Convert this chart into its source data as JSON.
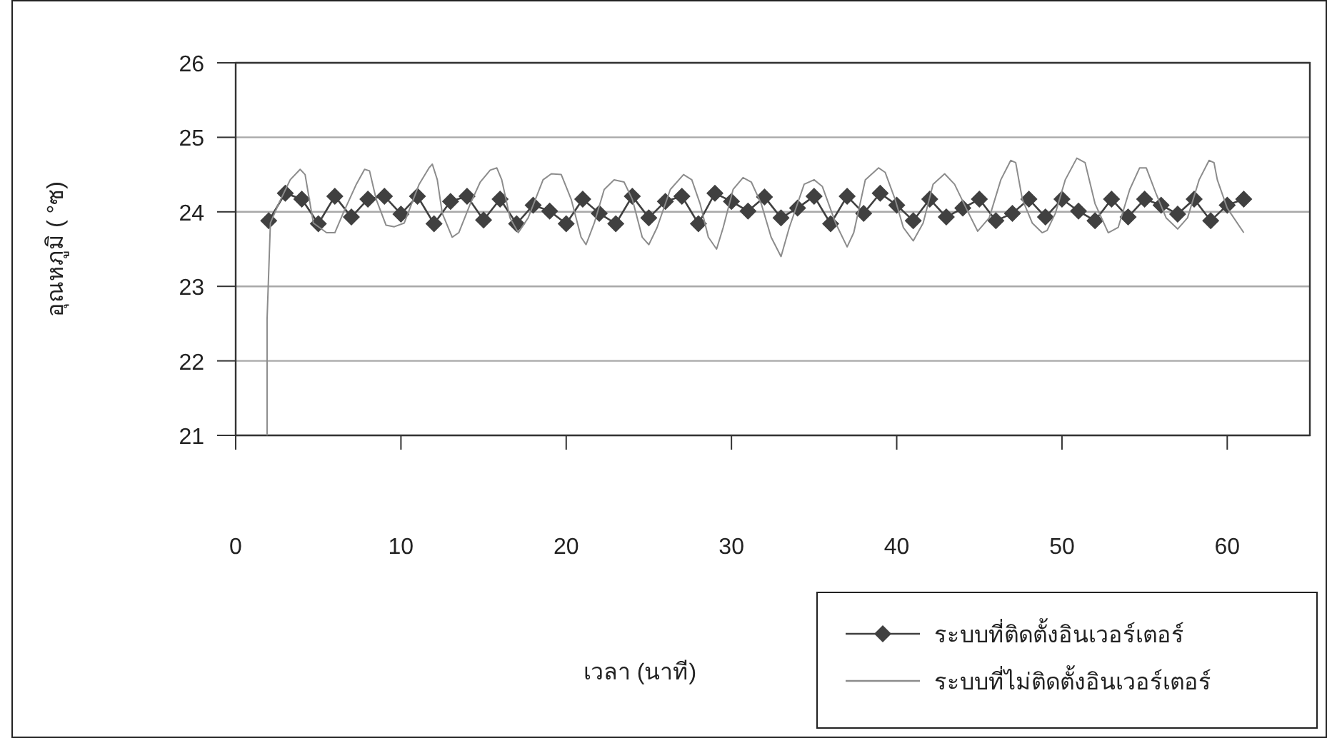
{
  "chart_data": {
    "type": "line",
    "xlabel": "เวลา (นาที)",
    "ylabel": "อุณหภูมิ ( °ซ)",
    "xlim": [
      0,
      65
    ],
    "ylim": [
      21,
      26
    ],
    "xticks": [
      0,
      10,
      20,
      30,
      40,
      50,
      60
    ],
    "yticks": [
      21,
      22,
      23,
      24,
      25,
      26
    ],
    "grid": "y",
    "legend": "bottom right",
    "series": [
      {
        "name": "ระบบที่ติดตั้งอินเวอร์เตอร์",
        "color": "#404040",
        "marker": "diamond",
        "x": [
          2,
          3,
          4,
          5,
          6,
          7,
          8,
          9,
          10,
          11,
          12,
          13,
          14,
          15,
          16,
          17,
          18,
          19,
          20,
          21,
          22,
          23,
          24,
          25,
          26,
          27,
          28,
          29,
          30,
          31,
          32,
          33,
          34,
          35,
          36,
          37,
          38,
          39,
          40,
          41,
          42,
          43,
          44,
          45,
          46,
          47,
          48,
          49,
          50,
          51,
          52,
          53,
          54,
          55,
          56,
          57,
          58,
          59,
          60,
          61
        ],
        "values": [
          23.88,
          24.25,
          24.17,
          23.84,
          24.21,
          23.93,
          24.17,
          24.21,
          23.97,
          24.21,
          23.84,
          24.14,
          24.21,
          23.89,
          24.17,
          23.84,
          24.09,
          24.01,
          23.84,
          24.17,
          23.98,
          23.84,
          24.21,
          23.92,
          24.14,
          24.21,
          23.84,
          24.25,
          24.14,
          24.01,
          24.2,
          23.92,
          24.05,
          24.21,
          23.84,
          24.21,
          23.98,
          24.25,
          24.09,
          23.88,
          24.17,
          23.93,
          24.05,
          24.17,
          23.88,
          23.98,
          24.17,
          23.93,
          24.17,
          24.01,
          23.88,
          24.17,
          23.93,
          24.17,
          24.09,
          23.97,
          24.17,
          23.88,
          24.09,
          24.17
        ]
      },
      {
        "name": "ระบบที่ไม่ติดตั้งอินเวอร์เตอร์",
        "color": "#8c8c8c",
        "marker": "none",
        "x": [
          1.9,
          1.9,
          2.1,
          2.6,
          3.3,
          3.9,
          4.2,
          4.7,
          5.5,
          6.0,
          6.5,
          7.3,
          7.8,
          8.1,
          8.5,
          9.1,
          9.6,
          10.2,
          11.1,
          11.7,
          11.9,
          12.2,
          12.5,
          13.1,
          13.5,
          14.2,
          14.8,
          15.4,
          15.8,
          16.1,
          16.6,
          17.1,
          17.7,
          18.6,
          19.1,
          19.7,
          20.3,
          20.9,
          21.2,
          21.7,
          22.3,
          22.9,
          23.5,
          24.0,
          24.6,
          25.0,
          25.5,
          26.3,
          27.1,
          27.6,
          28.1,
          28.6,
          29.1,
          29.5,
          30.1,
          30.7,
          31.2,
          31.8,
          32.4,
          33.0,
          33.5,
          34.4,
          35.0,
          35.5,
          36.3,
          37.0,
          37.4,
          38.1,
          38.9,
          39.3,
          39.9,
          40.4,
          41.0,
          41.6,
          42.2,
          42.9,
          43.5,
          44.2,
          44.9,
          45.6,
          46.3,
          46.9,
          47.2,
          47.6,
          48.2,
          48.8,
          49.1,
          49.6,
          50.2,
          50.9,
          51.4,
          52.0,
          52.8,
          53.4,
          54.1,
          54.7,
          55.1,
          55.7,
          56.3,
          57.0,
          57.6,
          58.3,
          58.9,
          59.2,
          59.4,
          60.0,
          61.0
        ],
        "values": [
          21.0,
          22.56,
          23.85,
          24.11,
          24.43,
          24.57,
          24.5,
          23.85,
          23.72,
          23.72,
          23.98,
          24.37,
          24.57,
          24.55,
          24.17,
          23.82,
          23.8,
          23.85,
          24.37,
          24.59,
          24.64,
          24.43,
          23.98,
          23.66,
          23.72,
          24.11,
          24.4,
          24.56,
          24.59,
          24.43,
          23.92,
          23.72,
          23.92,
          24.43,
          24.51,
          24.5,
          24.17,
          23.66,
          23.56,
          23.85,
          24.3,
          24.43,
          24.4,
          24.17,
          23.66,
          23.56,
          23.79,
          24.3,
          24.5,
          24.43,
          24.11,
          23.66,
          23.5,
          23.79,
          24.3,
          24.46,
          24.4,
          24.11,
          23.66,
          23.4,
          23.79,
          24.37,
          24.43,
          24.34,
          23.85,
          23.53,
          23.72,
          24.43,
          24.59,
          24.53,
          24.17,
          23.79,
          23.61,
          23.85,
          24.37,
          24.51,
          24.37,
          24.05,
          23.74,
          23.92,
          24.43,
          24.69,
          24.66,
          24.17,
          23.85,
          23.72,
          23.75,
          23.98,
          24.43,
          24.72,
          24.66,
          24.11,
          23.72,
          23.79,
          24.3,
          24.59,
          24.59,
          24.24,
          23.92,
          23.77,
          23.92,
          24.43,
          24.69,
          24.66,
          24.43,
          24.05,
          23.72
        ]
      }
    ]
  }
}
